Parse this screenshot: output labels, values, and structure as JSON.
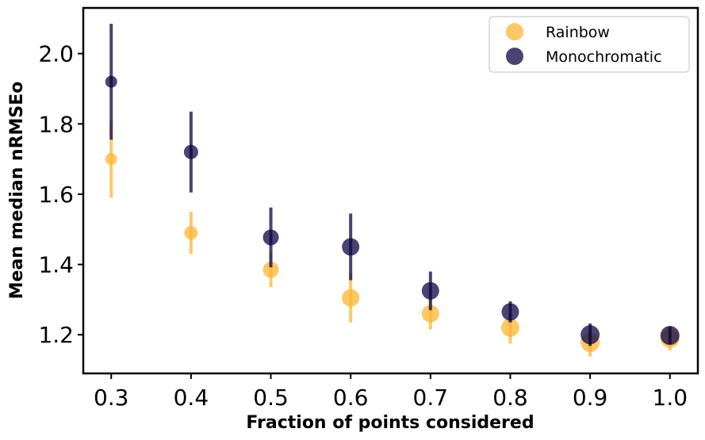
{
  "chart_data": {
    "type": "scatter",
    "title": "",
    "xlabel": "Fraction of points considered",
    "ylabel": "Mean median nRMSEo",
    "xlim": [
      0.265,
      1.035
    ],
    "ylim": [
      1.09,
      2.13
    ],
    "xticks": [
      "0.3",
      "0.4",
      "0.5",
      "0.6",
      "0.7",
      "0.8",
      "0.9",
      "1.0"
    ],
    "yticks": [
      "1.2",
      "1.4",
      "1.6",
      "1.8",
      "2.0"
    ],
    "grid": false,
    "legend_position": "top-right",
    "series": [
      {
        "name": "Rainbow",
        "color": "#fbb634",
        "x": [
          0.3,
          0.4,
          0.5,
          0.6,
          0.7,
          0.8,
          0.9,
          1.0
        ],
        "y": [
          1.7,
          1.49,
          1.385,
          1.305,
          1.26,
          1.22,
          1.178,
          1.19
        ],
        "err": [
          0.11,
          0.06,
          0.05,
          0.07,
          0.045,
          0.045,
          0.04,
          0.035
        ],
        "size": [
          7.5,
          8.5,
          10,
          11,
          11,
          11.5,
          12,
          12
        ]
      },
      {
        "name": "Monochromatic",
        "color": "#0c0643",
        "x": [
          0.3,
          0.4,
          0.5,
          0.6,
          0.7,
          0.8,
          0.9,
          1.0
        ],
        "y": [
          1.92,
          1.72,
          1.477,
          1.45,
          1.325,
          1.265,
          1.2,
          1.198
        ],
        "err": [
          0.165,
          0.115,
          0.085,
          0.095,
          0.055,
          0.03,
          0.032,
          0.025
        ],
        "size": [
          7.5,
          9,
          10,
          11,
          11,
          11,
          12,
          12
        ]
      }
    ]
  }
}
